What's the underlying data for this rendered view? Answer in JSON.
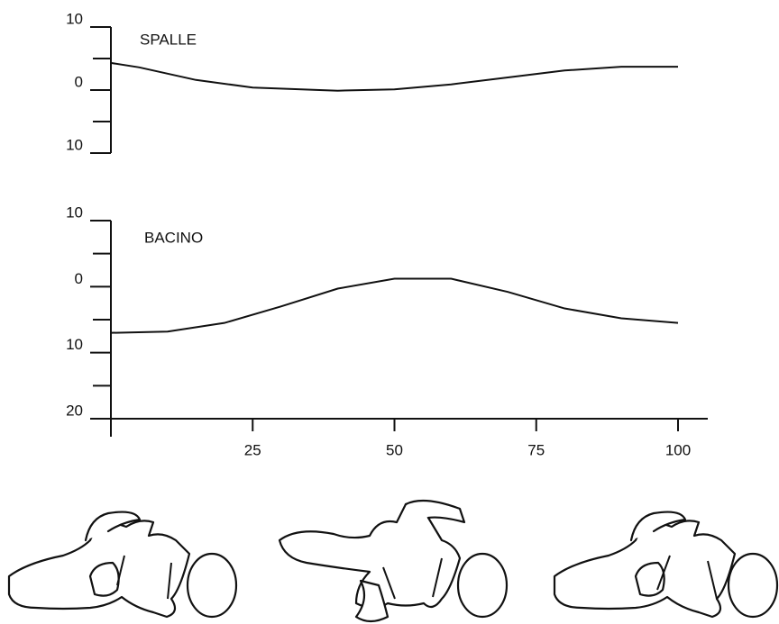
{
  "chart_data": [
    {
      "type": "line",
      "title": "SPALLE",
      "x": [
        0,
        5,
        15,
        25,
        40,
        50,
        60,
        70,
        80,
        90,
        100
      ],
      "values": [
        4.3,
        3.6,
        1.6,
        0.4,
        -0.1,
        0.1,
        0.9,
        2,
        3.1,
        3.7,
        3.7
      ],
      "xlim": [
        0,
        100
      ],
      "ylim": [
        -10,
        10
      ],
      "yticks": [
        10,
        0,
        {
          "value": -10,
          "label": "10"
        }
      ],
      "minor_yticks": [
        5,
        -5
      ],
      "color": "#111111"
    },
    {
      "type": "line",
      "title": "BACINO",
      "x": [
        0,
        10,
        20,
        30,
        40,
        50,
        60,
        70,
        80,
        90,
        100
      ],
      "values": [
        -7,
        -6.8,
        -5.5,
        -3,
        -0.3,
        1.2,
        1.2,
        -0.8,
        -3.3,
        -4.8,
        -5.5
      ],
      "xlim": [
        0,
        100
      ],
      "ylim": [
        -20,
        10
      ],
      "yticks": [
        10,
        0,
        {
          "value": -10,
          "label": "10"
        },
        {
          "value": -20,
          "label": "20"
        }
      ],
      "minor_yticks": [
        5,
        -5,
        -15
      ],
      "xticks": [
        25,
        50,
        75,
        100
      ],
      "color": "#111111"
    }
  ]
}
